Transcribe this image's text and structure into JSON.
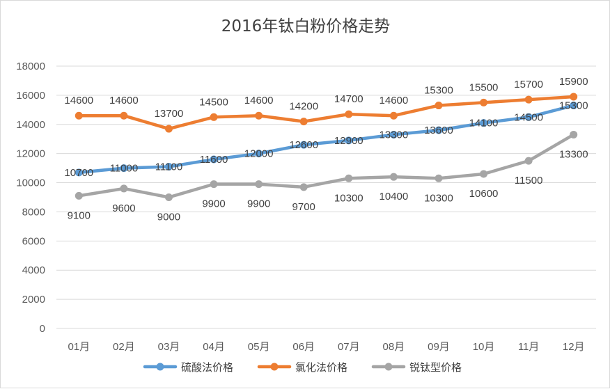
{
  "chart_data": {
    "type": "line",
    "title": "2016年钛白粉价格走势",
    "categories": [
      "01月",
      "02月",
      "03月",
      "04月",
      "05月",
      "06月",
      "07月",
      "08月",
      "09月",
      "10月",
      "11月",
      "12月"
    ],
    "ylim": [
      0,
      18000
    ],
    "yticks": [
      "0",
      "2000",
      "4000",
      "6000",
      "8000",
      "10000",
      "12000",
      "14000",
      "16000",
      "18000"
    ],
    "grid": true,
    "legend_position": "bottom",
    "xlabel": "",
    "ylabel": "",
    "series": [
      {
        "name": "硫酸法价格",
        "color": "#5B9BD5",
        "values": [
          10700,
          11000,
          11100,
          11600,
          12000,
          12600,
          12900,
          13300,
          13600,
          14100,
          14500,
          15300
        ],
        "labels": [
          "10700",
          "11000",
          "11100",
          "11600",
          "12000",
          "12600",
          "12900",
          "13300",
          "13600",
          "14100",
          "14500",
          "15300"
        ]
      },
      {
        "name": "氯化法价格",
        "color": "#ED7D31",
        "values": [
          14600,
          14600,
          13700,
          14500,
          14600,
          14200,
          14700,
          14600,
          15300,
          15500,
          15700,
          15900
        ],
        "labels": [
          "14600",
          "14600",
          "13700",
          "14500",
          "14600",
          "14200",
          "14700",
          "14600",
          "15300",
          "15500",
          "15700",
          "15900"
        ]
      },
      {
        "name": "锐钛型价格",
        "color": "#A5A5A5",
        "values": [
          9100,
          9600,
          9000,
          9900,
          9900,
          9700,
          10300,
          10400,
          10300,
          10600,
          11500,
          13300
        ],
        "labels": [
          "9100",
          "9600",
          "9000",
          "9900",
          "9900",
          "9700",
          "10300",
          "10400",
          "10300",
          "10600",
          "11500",
          "13300"
        ]
      }
    ]
  }
}
